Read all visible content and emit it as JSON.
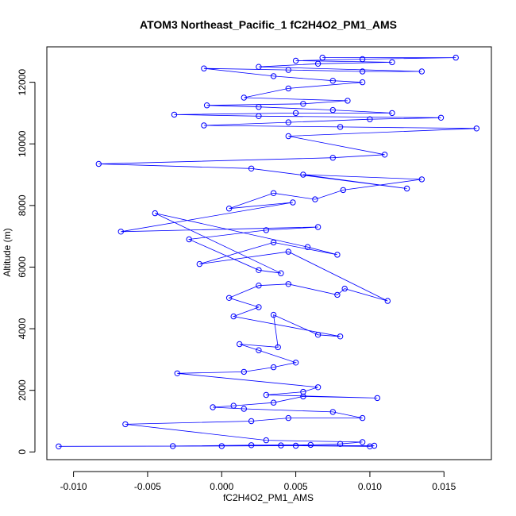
{
  "chart_data": {
    "type": "scatter",
    "title": "ATOM3 Northeast_Pacific_1 fC2H4O2_PM1_AMS",
    "xlabel": "fC2H4O2_PM1_AMS",
    "ylabel": "Altitude (m)",
    "xlim": [
      -0.0118,
      0.0182
    ],
    "ylim": [
      -250,
      13150
    ],
    "x_ticks": [
      -0.01,
      -0.005,
      0.0,
      0.005,
      0.01,
      0.015
    ],
    "x_tick_labels": [
      "-0.010",
      "-0.005",
      "0.000",
      "0.005",
      "0.010",
      "0.015"
    ],
    "y_ticks": [
      0,
      2000,
      4000,
      6000,
      8000,
      10000,
      12000
    ],
    "y_tick_labels": [
      "0",
      "2000",
      "4000",
      "6000",
      "8000",
      "10000",
      "12000"
    ],
    "grid": false,
    "legend": "none",
    "connected": true,
    "color": "#0000ff",
    "series": [
      {
        "points": [
          [
            -0.011,
            180
          ],
          [
            0.0,
            190
          ],
          [
            0.005,
            200
          ],
          [
            0.01,
            180
          ],
          [
            0.0103,
            200
          ],
          [
            0.004,
            210
          ],
          [
            -0.0033,
            190
          ],
          [
            0.002,
            220
          ],
          [
            0.006,
            230
          ],
          [
            0.008,
            260
          ],
          [
            0.0095,
            320
          ],
          [
            0.003,
            380
          ],
          [
            -0.0065,
            900
          ],
          [
            0.002,
            1000
          ],
          [
            0.0045,
            1100
          ],
          [
            0.0095,
            1100
          ],
          [
            0.0075,
            1300
          ],
          [
            0.0015,
            1400
          ],
          [
            -0.0006,
            1450
          ],
          [
            0.0008,
            1500
          ],
          [
            0.0035,
            1600
          ],
          [
            0.0055,
            1800
          ],
          [
            0.0105,
            1750
          ],
          [
            0.003,
            1850
          ],
          [
            0.0055,
            1950
          ],
          [
            0.0065,
            2100
          ],
          [
            -0.003,
            2550
          ],
          [
            0.0015,
            2600
          ],
          [
            0.0035,
            2750
          ],
          [
            0.005,
            2900
          ],
          [
            0.0025,
            3300
          ],
          [
            0.0012,
            3500
          ],
          [
            0.0038,
            3400
          ],
          [
            0.0035,
            4450
          ],
          [
            0.0065,
            3800
          ],
          [
            0.008,
            3750
          ],
          [
            0.0008,
            4400
          ],
          [
            0.0025,
            4700
          ],
          [
            0.0005,
            5000
          ],
          [
            0.0025,
            5400
          ],
          [
            0.0045,
            5450
          ],
          [
            0.0078,
            5100
          ],
          [
            0.0083,
            5300
          ],
          [
            0.0112,
            4900
          ],
          [
            0.0045,
            6500
          ],
          [
            -0.0015,
            6100
          ],
          [
            0.0035,
            6800
          ],
          [
            0.0078,
            6400
          ],
          [
            0.0058,
            6650
          ],
          [
            -0.0045,
            7750
          ],
          [
            0.004,
            5800
          ],
          [
            0.0025,
            5900
          ],
          [
            -0.0022,
            6900
          ],
          [
            0.003,
            7200
          ],
          [
            0.0065,
            7300
          ],
          [
            -0.0068,
            7150
          ],
          [
            0.0048,
            8100
          ],
          [
            0.0005,
            7900
          ],
          [
            0.0035,
            8400
          ],
          [
            0.0063,
            8200
          ],
          [
            0.0082,
            8500
          ],
          [
            0.0135,
            8850
          ],
          [
            0.0055,
            9000
          ],
          [
            0.0125,
            8550
          ],
          [
            0.002,
            9200
          ],
          [
            -0.0083,
            9350
          ],
          [
            0.0075,
            9550
          ],
          [
            0.011,
            9650
          ],
          [
            0.0045,
            10250
          ],
          [
            0.0172,
            10500
          ],
          [
            0.008,
            10550
          ],
          [
            -0.0012,
            10600
          ],
          [
            0.0045,
            10700
          ],
          [
            0.01,
            10800
          ],
          [
            0.0148,
            10850
          ],
          [
            0.0025,
            10900
          ],
          [
            -0.0032,
            10950
          ],
          [
            0.005,
            11000
          ],
          [
            0.0115,
            11000
          ],
          [
            0.0075,
            11100
          ],
          [
            0.0025,
            11200
          ],
          [
            -0.001,
            11250
          ],
          [
            0.0055,
            11300
          ],
          [
            0.0085,
            11400
          ],
          [
            0.0015,
            11500
          ],
          [
            0.0045,
            11800
          ],
          [
            0.0095,
            12000
          ],
          [
            0.0075,
            12050
          ],
          [
            0.0035,
            12200
          ],
          [
            -0.0012,
            12450
          ],
          [
            0.0045,
            12400
          ],
          [
            0.0095,
            12350
          ],
          [
            0.0135,
            12350
          ],
          [
            0.0025,
            12500
          ],
          [
            0.0065,
            12600
          ],
          [
            0.0115,
            12650
          ],
          [
            0.005,
            12700
          ],
          [
            0.0095,
            12750
          ],
          [
            0.0158,
            12800
          ],
          [
            0.0068,
            12800
          ]
        ]
      }
    ]
  }
}
